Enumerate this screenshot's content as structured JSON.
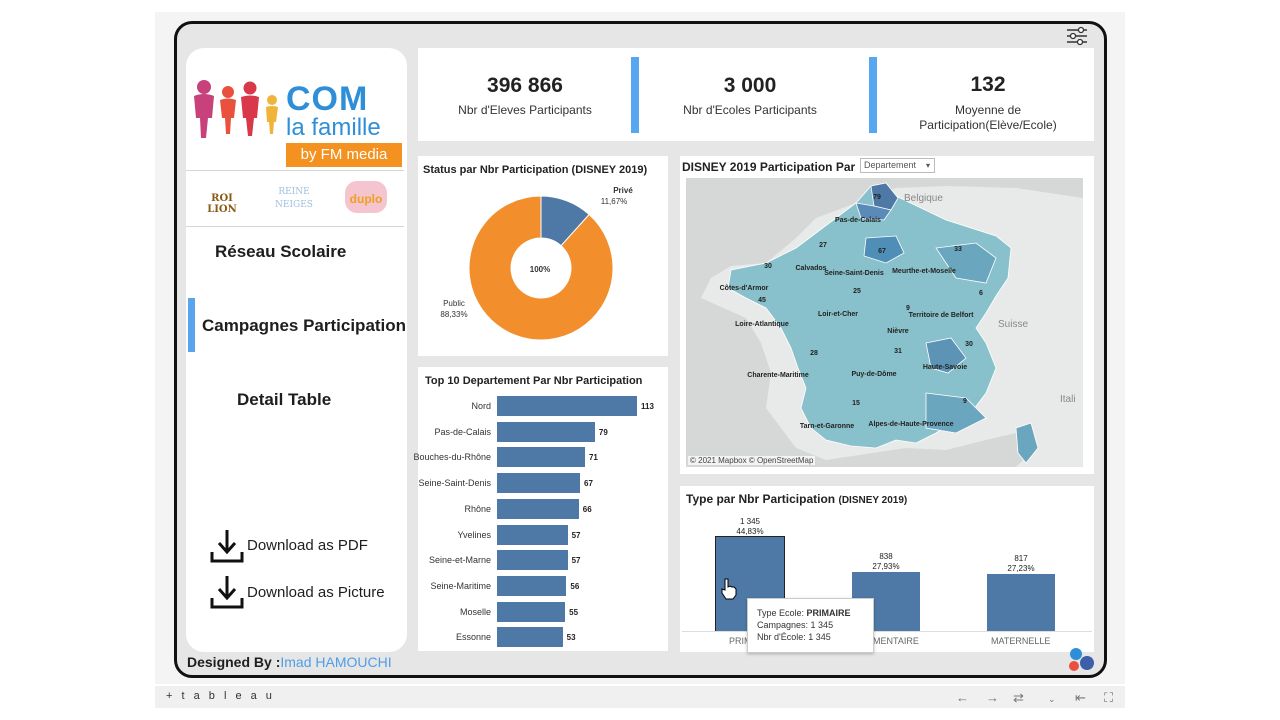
{
  "sidebar": {
    "logo": {
      "line1": "COM",
      "line2": "la famille",
      "by": "by FM media"
    },
    "brands": [
      "ROI LION",
      "REINE NEIGES",
      "duplo"
    ],
    "nav": [
      {
        "label": "Réseau Scolaire"
      },
      {
        "label": "Campagnes Participation",
        "active": true
      },
      {
        "label": "Detail Table"
      }
    ],
    "downloads": [
      {
        "label": "Download as PDF"
      },
      {
        "label": "Download as Picture"
      }
    ]
  },
  "footer": {
    "designed_by": "Designed By :",
    "author": "Imad HAMOUCHI"
  },
  "kpis": [
    {
      "value": "396 866",
      "label": "Nbr d'Eleves Participants"
    },
    {
      "value": "3 000",
      "label": "Nbr d'Ecoles Participants"
    },
    {
      "value": "132",
      "label_line1": "Moyenne de",
      "label_line2": "Participation(Elève/Ecole)"
    }
  ],
  "status_panel": {
    "title": "Status par Nbr Participation  (DISNEY 2019)"
  },
  "top10_panel": {
    "title": "Top 10 Departement Par Nbr Participation"
  },
  "map_panel": {
    "title": "DISNEY 2019 Participation Par",
    "dropdown": "Departement",
    "credit": "© 2021 Mapbox  © OpenStreetMap",
    "countries": [
      "Belgique",
      "Suisse",
      "Itali"
    ],
    "labels": [
      "Pas-de-Calais",
      "Calvados",
      "Seine-Saint-Denis",
      "Meurthe-et-Moselle",
      "Côtes-d'Armor",
      "Territoire de Belfort",
      "Loir-et-Cher",
      "Loire-Atlantique",
      "Nièvre",
      "Charente-Maritime",
      "Puy-de-Dôme",
      "Haute-Savoie",
      "Tarn-et-Garonne",
      "Alpes-de-Haute-Provence"
    ],
    "numbers": [
      "79",
      "27",
      "67",
      "33",
      "30",
      "45",
      "25",
      "6",
      "9",
      "28",
      "31",
      "30",
      "15",
      "9"
    ]
  },
  "type_panel": {
    "title": "Type par Nbr Participation",
    "title_suffix": "(DISNEY 2019)",
    "axis_labels": [
      "PRIM",
      "MENTAIRE",
      "MATERNELLE"
    ]
  },
  "tooltip": {
    "line1_label": "Type Ecole:",
    "line1_value": "PRIMAIRE",
    "line2_label": "Campagnes:",
    "line2_value": "1 345",
    "line3_label": "Nbr d'École:",
    "line3_value": "1 345"
  },
  "toolbar": {
    "brand": "+ t a b l e a u"
  },
  "colors": {
    "accent_blue": "#56a6f0",
    "bar_blue": "#4e79a7",
    "orange": "#f28e2b",
    "dark_blue": "#4e79a7"
  },
  "chart_data": [
    {
      "type": "pie",
      "title": "Status par Nbr Participation  (DISNEY 2019)",
      "center_label": "100%",
      "slices": [
        {
          "name": "Privé",
          "value": 11.67,
          "label": "11,67%",
          "color": "#4e79a7"
        },
        {
          "name": "Public",
          "value": 88.33,
          "label": "88,33%",
          "color": "#f28e2b"
        }
      ]
    },
    {
      "type": "bar",
      "orientation": "horizontal",
      "title": "Top 10 Departement Par Nbr Participation",
      "categories": [
        "Nord",
        "Pas-de-Calais",
        "Bouches-du-Rhône",
        "Seine-Saint-Denis",
        "Rhône",
        "Yvelines",
        "Seine-et-Marne",
        "Seine-Maritime",
        "Moselle",
        "Essonne"
      ],
      "values": [
        113,
        79,
        71,
        67,
        66,
        57,
        57,
        56,
        55,
        53
      ],
      "xlim": [
        0,
        113
      ]
    },
    {
      "type": "bar",
      "title": "Type par Nbr Participation (DISNEY 2019)",
      "categories": [
        "PRIMAIRE",
        "ELEMENTAIRE",
        "MATERNELLE"
      ],
      "values": [
        1345,
        838,
        817
      ],
      "value_labels": [
        "1 345",
        "838",
        "817"
      ],
      "pct_labels": [
        "44,83%",
        "27,93%",
        "27,23%"
      ],
      "ylim": [
        0,
        1345
      ]
    }
  ]
}
